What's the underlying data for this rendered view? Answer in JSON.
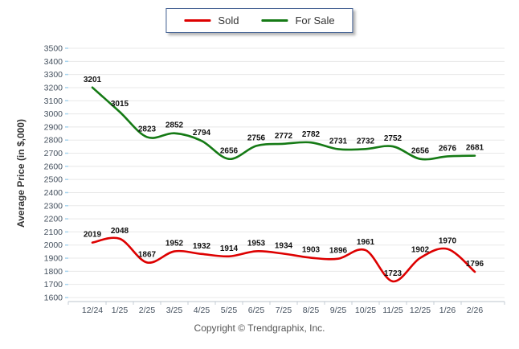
{
  "chart_data": {
    "type": "line",
    "categories": [
      "12/24",
      "1/25",
      "2/25",
      "3/25",
      "4/25",
      "5/25",
      "6/25",
      "7/25",
      "8/25",
      "9/25",
      "10/25",
      "11/25",
      "12/25",
      "1/26",
      "2/26"
    ],
    "series": [
      {
        "name": "Sold",
        "color": "#dd0000",
        "values": [
          2019,
          2048,
          1867,
          1952,
          1932,
          1914,
          1953,
          1934,
          1903,
          1896,
          1961,
          1723,
          1902,
          1970,
          1796
        ]
      },
      {
        "name": "For Sale",
        "color": "#157a15",
        "values": [
          3201,
          3015,
          2823,
          2852,
          2794,
          2656,
          2756,
          2772,
          2782,
          2731,
          2732,
          2752,
          2656,
          2676,
          2681
        ]
      }
    ],
    "title": "",
    "xlabel": "",
    "ylabel": "Average Price (in $,000)",
    "ylim": [
      1600,
      3500
    ],
    "ytick_step": 100,
    "grid": true,
    "legend_position": "top-center",
    "colors": {
      "gridline": "#e8e8e8",
      "axis_line": "#bcc5ce",
      "axis_tick": "#c4ccd4",
      "y_axis_tick": "#a8d4ee",
      "tick_label": "#44505e",
      "data_label": "#111111"
    }
  },
  "footer": {
    "copyright": "Copyright © Trendgraphix, Inc."
  }
}
